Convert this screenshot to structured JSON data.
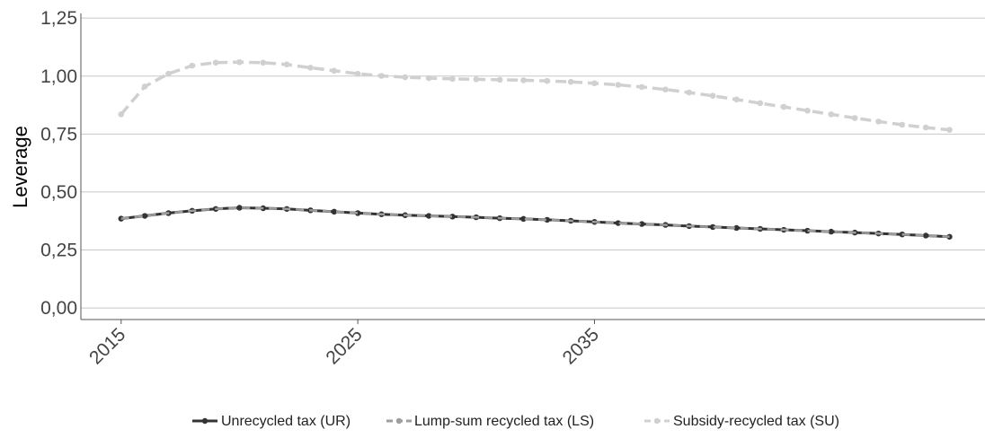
{
  "chart_data": {
    "type": "line",
    "title": "",
    "xlabel": "",
    "ylabel": "Leverage",
    "x": [
      2015,
      2016,
      2017,
      2018,
      2019,
      2020,
      2021,
      2022,
      2023,
      2024,
      2025,
      2026,
      2027,
      2028,
      2029,
      2030,
      2031,
      2032,
      2033,
      2034,
      2035,
      2036,
      2037,
      2038,
      2039,
      2040,
      2041,
      2042,
      2043,
      2044,
      2045,
      2046,
      2047,
      2048,
      2049,
      2050
    ],
    "xticks": [
      2015,
      2025,
      2035
    ],
    "xtick_labels": [
      "2015",
      "2025",
      "2035"
    ],
    "xlim": [
      2013.3,
      2051.5
    ],
    "ylim": [
      -0.05,
      1.27
    ],
    "yticks": [
      0,
      0.25,
      0.5,
      0.75,
      1.0,
      1.25
    ],
    "ytick_labels": [
      "0,00",
      "0,25",
      "0,50",
      "0,75",
      "1,00",
      "1,25"
    ],
    "grid": "horizontal",
    "legend_position": "bottom",
    "series": [
      {
        "name": "Unrecycled tax (UR)",
        "color": "#333333",
        "style": "solid",
        "values": [
          0.385,
          0.397,
          0.409,
          0.419,
          0.427,
          0.432,
          0.43,
          0.427,
          0.421,
          0.415,
          0.409,
          0.404,
          0.4,
          0.397,
          0.394,
          0.391,
          0.387,
          0.384,
          0.38,
          0.376,
          0.371,
          0.366,
          0.362,
          0.358,
          0.353,
          0.349,
          0.345,
          0.341,
          0.337,
          0.333,
          0.329,
          0.325,
          0.321,
          0.317,
          0.312,
          0.307
        ]
      },
      {
        "name": "Lump-sum recycled tax (LS)",
        "color": "#9e9e9e",
        "style": "dashed",
        "values": [
          0.385,
          0.397,
          0.409,
          0.419,
          0.427,
          0.432,
          0.43,
          0.427,
          0.421,
          0.415,
          0.409,
          0.404,
          0.4,
          0.397,
          0.394,
          0.391,
          0.387,
          0.384,
          0.38,
          0.376,
          0.371,
          0.366,
          0.362,
          0.358,
          0.353,
          0.349,
          0.345,
          0.341,
          0.337,
          0.333,
          0.329,
          0.325,
          0.321,
          0.317,
          0.312,
          0.307
        ]
      },
      {
        "name": "Subsidy-recycled tax (SU)",
        "color": "#d0d0d0",
        "style": "dashed",
        "values": [
          0.835,
          0.955,
          1.01,
          1.045,
          1.058,
          1.06,
          1.058,
          1.05,
          1.036,
          1.023,
          1.01,
          1.001,
          0.995,
          0.991,
          0.988,
          0.986,
          0.984,
          0.982,
          0.979,
          0.975,
          0.969,
          0.962,
          0.953,
          0.942,
          0.929,
          0.915,
          0.899,
          0.883,
          0.867,
          0.851,
          0.835,
          0.819,
          0.804,
          0.79,
          0.778,
          0.768
        ]
      }
    ]
  }
}
